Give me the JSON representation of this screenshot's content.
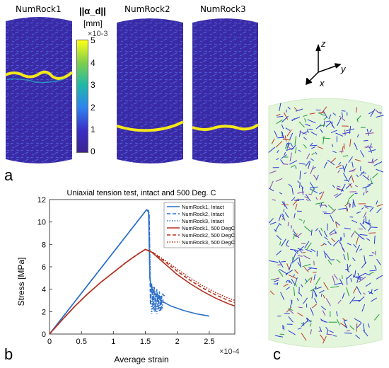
{
  "panel_a": {
    "letter": "a",
    "rock_labels": [
      "NumRock1",
      "NumRock2",
      "NumRock3"
    ],
    "colorbar": {
      "label": "||α_d||",
      "unit": "[mm]",
      "multiplier": "×10-3",
      "ticks": [
        "5",
        "4",
        "3",
        "2",
        "1",
        "0"
      ],
      "colors": [
        "#ffff14",
        "#7ecf4b",
        "#20b8a8",
        "#2e84f0",
        "#3a30c8",
        "#3e2490"
      ]
    }
  },
  "panel_b": {
    "letter": "b"
  },
  "panel_c": {
    "letter": "c",
    "axes": {
      "z": "z",
      "y": "y",
      "x": "x"
    }
  },
  "chart_data": {
    "type": "line",
    "title": "Uniaxial tension test, intact and 500 Deg. C",
    "xlabel": "Average strain",
    "ylabel": "Stress [MPa]",
    "x_multiplier": "×10-4",
    "xlim": [
      0,
      2.9
    ],
    "ylim": [
      0,
      12
    ],
    "xticks": [
      0,
      0.5,
      1,
      1.5,
      2,
      2.5
    ],
    "yticks": [
      0,
      2,
      4,
      6,
      8,
      10,
      12
    ],
    "grid": false,
    "legend_position": "top-right",
    "series": [
      {
        "name": "NumRock1, Intact",
        "color": "#2a6fc9",
        "dash": "solid",
        "x": [
          0,
          1.52,
          1.55,
          1.57,
          1.6,
          1.7,
          1.8,
          1.9,
          2.0,
          2.1,
          2.2,
          2.3,
          2.4,
          2.5
        ],
        "y": [
          0,
          11.1,
          11.0,
          5.0,
          4.0,
          3.2,
          2.8,
          2.5,
          2.3,
          2.1,
          1.95,
          1.8,
          1.7,
          1.6
        ]
      },
      {
        "name": "NumRock2, Intact",
        "color": "#2a6fc9",
        "dash": "dashed",
        "x": [
          0,
          1.52,
          1.56,
          1.58,
          1.6,
          1.62,
          1.64,
          1.66,
          1.68,
          1.7,
          1.72,
          1.74,
          1.76,
          1.8
        ],
        "y": [
          0,
          11.1,
          10.8,
          2.6,
          4.5,
          2.2,
          4.2,
          2.0,
          4.0,
          2.2,
          3.8,
          2.0,
          3.6,
          3.4
        ]
      },
      {
        "name": "NumRock3, Intact",
        "color": "#2a6fc9",
        "dash": "dotted",
        "x": [
          0,
          1.52,
          1.56,
          1.58,
          1.6,
          1.62,
          1.64,
          1.66,
          1.68,
          1.7,
          1.72,
          1.74,
          1.76,
          1.78
        ],
        "y": [
          0,
          11.1,
          10.8,
          3.8,
          1.8,
          4.2,
          2.0,
          3.8,
          1.8,
          3.6,
          2.0,
          3.4,
          2.2,
          3.2
        ]
      },
      {
        "name": "NumRock1, 500 DegC",
        "color": "#b3311f",
        "dash": "solid",
        "x": [
          0,
          0.2,
          0.4,
          0.6,
          0.8,
          1.0,
          1.2,
          1.4,
          1.5,
          1.6,
          1.8,
          2.0,
          2.2,
          2.4,
          2.6,
          2.8,
          2.9
        ],
        "y": [
          0,
          1.28,
          2.5,
          3.6,
          4.6,
          5.5,
          6.4,
          7.2,
          7.55,
          7.3,
          6.3,
          5.3,
          4.5,
          3.8,
          3.2,
          2.7,
          2.5
        ]
      },
      {
        "name": "NumRock2, 500 DegC",
        "color": "#b3311f",
        "dash": "dashed",
        "x": [
          0,
          0.2,
          0.4,
          0.6,
          0.8,
          1.0,
          1.2,
          1.4,
          1.5,
          1.6,
          1.8,
          2.0,
          2.2,
          2.4,
          2.6,
          2.8,
          2.9
        ],
        "y": [
          0,
          1.28,
          2.5,
          3.6,
          4.6,
          5.5,
          6.4,
          7.2,
          7.55,
          7.35,
          6.5,
          5.6,
          4.8,
          4.1,
          3.5,
          3.0,
          2.8
        ]
      },
      {
        "name": "NumRock3, 500 DegC",
        "color": "#b3311f",
        "dash": "dotted",
        "x": [
          0,
          0.2,
          0.4,
          0.6,
          0.8,
          1.0,
          1.2,
          1.4,
          1.5,
          1.6,
          1.8,
          2.0,
          2.2,
          2.4,
          2.6,
          2.8,
          2.9
        ],
        "y": [
          0,
          1.28,
          2.5,
          3.6,
          4.6,
          5.5,
          6.4,
          7.2,
          7.55,
          7.35,
          6.6,
          5.8,
          5.0,
          4.3,
          3.7,
          3.2,
          3.0
        ]
      }
    ]
  }
}
